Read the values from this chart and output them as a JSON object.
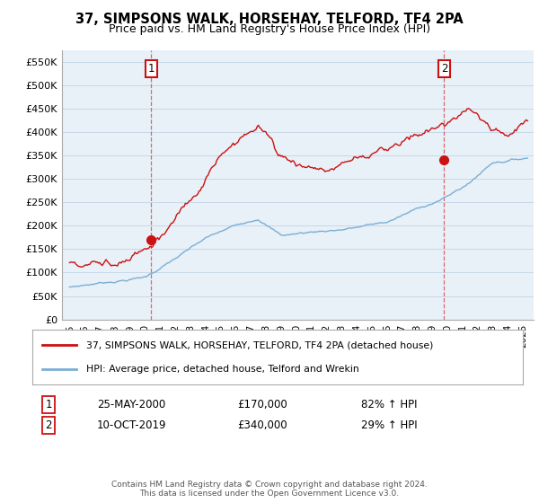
{
  "title": "37, SIMPSONS WALK, HORSEHAY, TELFORD, TF4 2PA",
  "subtitle": "Price paid vs. HM Land Registry's House Price Index (HPI)",
  "ylim": [
    0,
    575000
  ],
  "yticks": [
    0,
    50000,
    100000,
    150000,
    200000,
    250000,
    300000,
    350000,
    400000,
    450000,
    500000,
    550000
  ],
  "ytick_labels": [
    "£0",
    "£50K",
    "£100K",
    "£150K",
    "£200K",
    "£250K",
    "£300K",
    "£350K",
    "£400K",
    "£450K",
    "£500K",
    "£550K"
  ],
  "hpi_color": "#7bafd4",
  "price_color": "#cc1111",
  "plot_bg_color": "#e8f0f8",
  "marker1_date": 2000.4,
  "marker1_price": 170000,
  "marker2_date": 2019.78,
  "marker2_price": 340000,
  "legend_line1": "37, SIMPSONS WALK, HORSEHAY, TELFORD, TF4 2PA (detached house)",
  "legend_line2": "HPI: Average price, detached house, Telford and Wrekin",
  "annotation1_date": "25-MAY-2000",
  "annotation1_price": "£170,000",
  "annotation1_hpi": "82% ↑ HPI",
  "annotation2_date": "10-OCT-2019",
  "annotation2_price": "£340,000",
  "annotation2_hpi": "29% ↑ HPI",
  "footer": "Contains HM Land Registry data © Crown copyright and database right 2024.\nThis data is licensed under the Open Government Licence v3.0.",
  "background_color": "#ffffff",
  "grid_color": "#c8d8e8"
}
